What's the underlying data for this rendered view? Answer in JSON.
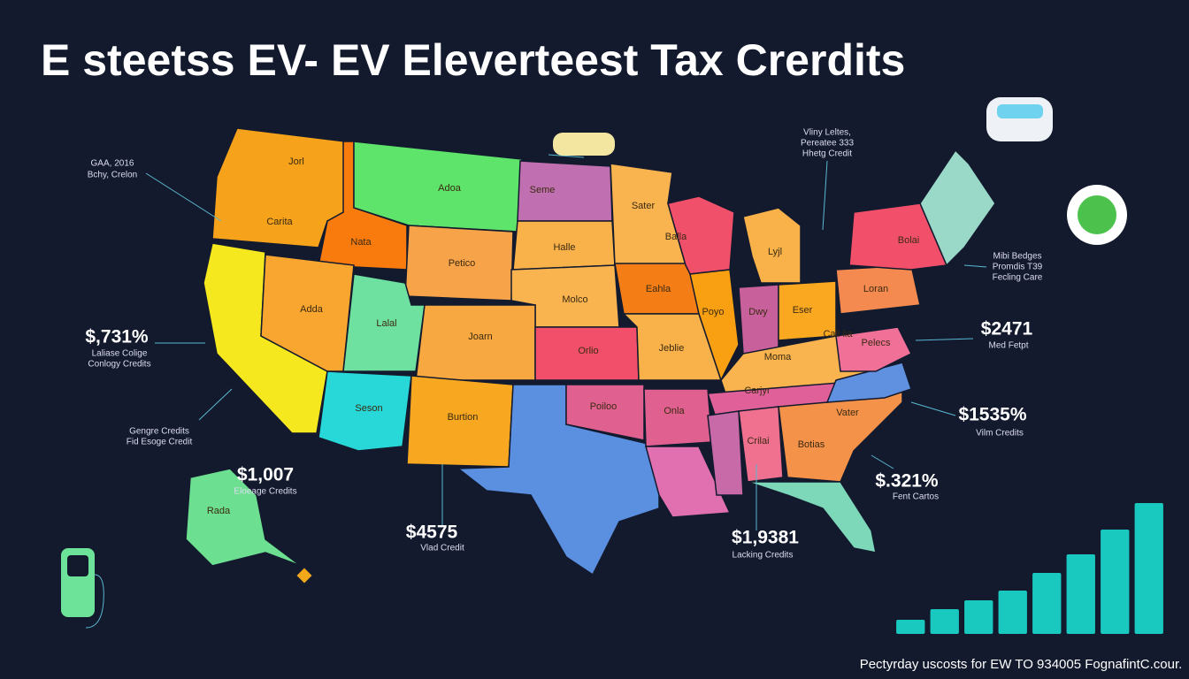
{
  "title": "E steetss EV- EV Eleverteest Tax Crerdits",
  "states": [
    "Jorl",
    "Carita",
    "Adoa",
    "Nata",
    "Adda",
    "Lalal",
    "Petico",
    "Joarn",
    "Seson",
    "Burtion",
    "Seme",
    "Halle",
    "Molco",
    "Orlio",
    "Sater",
    "Balla",
    "Eahla",
    "Poyo",
    "Dwy",
    "Lyjl",
    "Eser",
    "Bolai",
    "Loran",
    "Pelecs",
    "Cali lia",
    "Moma",
    "Jeblie",
    "Carjyr",
    "Poiloo",
    "Onla",
    "Vater",
    "Crilai",
    "Botias",
    "Rada"
  ],
  "callouts": [
    {
      "lines": [
        "GAA, 2016",
        "Bchy, Crelon"
      ]
    },
    {
      "lines": [
        "Vliny Leltes,",
        "Pereatee 333",
        "Hhetg Credit"
      ]
    },
    {
      "amount": "$,731%",
      "lines": [
        "Laliase Colige",
        "Conlogy Credits"
      ]
    },
    {
      "lines": [
        "Gengre Credits",
        "Fid Esoge Credit"
      ]
    },
    {
      "amount": "$1,007",
      "lines": [
        "Eloeage Credits"
      ]
    },
    {
      "amount": "$4575",
      "lines": [
        "Vlad Credit"
      ]
    },
    {
      "amount": "$1,9381",
      "lines": [
        "Lacking Credits"
      ]
    },
    {
      "amount": "$.321%",
      "lines": [
        "Fent Cartos"
      ]
    },
    {
      "amount": "$1535%",
      "lines": [
        "Vilm Credits"
      ]
    },
    {
      "amount": "$2471",
      "lines": [
        "Med Fetpt"
      ]
    },
    {
      "lines": [
        "Mibi Bedges",
        "Promdis T39",
        "Fecling Care"
      ]
    }
  ],
  "footer": "Pectyrday uscosts for EW TO 934005 FognafintC.cour.",
  "chart_data": {
    "type": "bar",
    "categories": [
      null,
      null,
      null,
      null,
      null,
      null,
      null,
      null
    ],
    "values": [
      16,
      28,
      38,
      49,
      69,
      90,
      118,
      148
    ],
    "ylim": [
      0,
      150
    ],
    "color": "#19c9c0"
  }
}
